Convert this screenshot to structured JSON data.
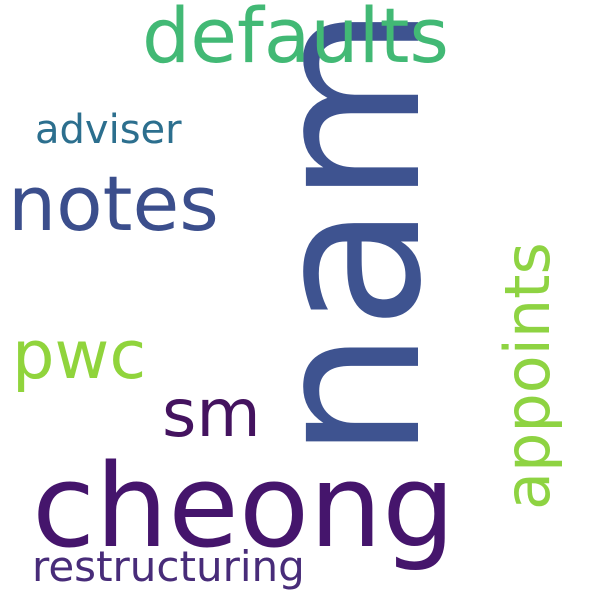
{
  "word_cloud": {
    "background_color": "#ffffff",
    "words": [
      {
        "text": "nam",
        "color": "#3e5390",
        "orientation": "vertical"
      },
      {
        "text": "cheong",
        "color": "#45156c",
        "orientation": "horizontal"
      },
      {
        "text": "defaults",
        "color": "#42b975",
        "orientation": "horizontal"
      },
      {
        "text": "notes",
        "color": "#3b4e8c",
        "orientation": "horizontal"
      },
      {
        "text": "appoints",
        "color": "#8ed342",
        "orientation": "vertical"
      },
      {
        "text": "sm",
        "color": "#44135f",
        "orientation": "horizontal"
      },
      {
        "text": "pwc",
        "color": "#90d43c",
        "orientation": "horizontal"
      },
      {
        "text": "adviser",
        "color": "#2c6f8e",
        "orientation": "horizontal"
      },
      {
        "text": "restructuring",
        "color": "#482c79",
        "orientation": "horizontal"
      }
    ]
  }
}
